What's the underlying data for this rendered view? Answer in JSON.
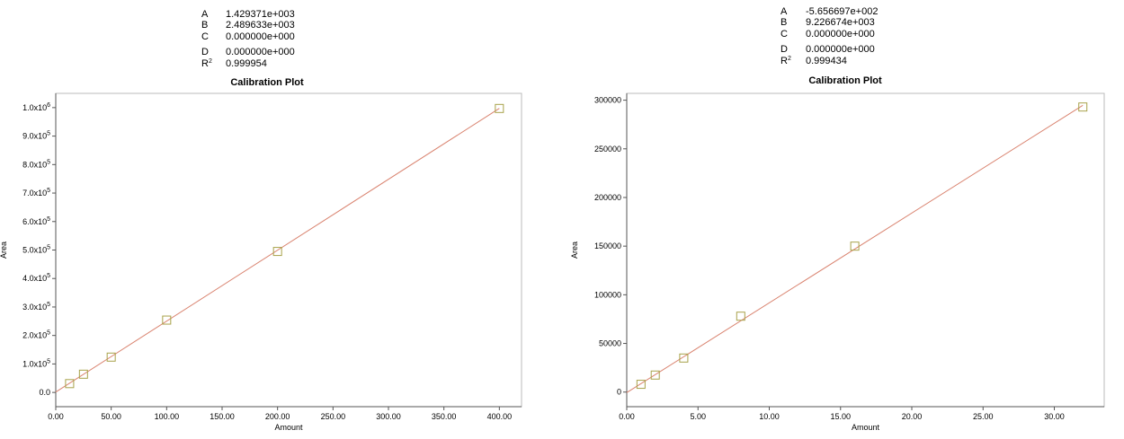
{
  "chart_data": [
    {
      "type": "scatter",
      "title": "Calibration Plot",
      "xlabel": "Amount",
      "ylabel": "Area",
      "coefficients": [
        {
          "name": "A",
          "value": "1.429371e+003"
        },
        {
          "name": "B",
          "value": "2.489633e+003"
        },
        {
          "name": "C",
          "value": "0.000000e+000"
        },
        {
          "name": "D",
          "value": "0.000000e+000"
        },
        {
          "name": "R",
          "sup": "2",
          "value": "0.999954"
        }
      ],
      "xlim": [
        0,
        420
      ],
      "ylim": [
        -50000,
        1050000
      ],
      "xticks": [
        {
          "value": 0,
          "label": "0.00"
        },
        {
          "value": 50,
          "label": "50.00"
        },
        {
          "value": 100,
          "label": "100.00"
        },
        {
          "value": 150,
          "label": "150.00"
        },
        {
          "value": 200,
          "label": "200.00"
        },
        {
          "value": 250,
          "label": "250.00"
        },
        {
          "value": 300,
          "label": "300.00"
        },
        {
          "value": 350,
          "label": "350.00"
        },
        {
          "value": 400,
          "label": "400.00"
        }
      ],
      "yticks": [
        {
          "value": 0,
          "label": "0.0"
        },
        {
          "value": 100000,
          "label": "1.0x10",
          "exp": "5"
        },
        {
          "value": 200000,
          "label": "2.0x10",
          "exp": "5"
        },
        {
          "value": 300000,
          "label": "3.0x10",
          "exp": "5"
        },
        {
          "value": 400000,
          "label": "4.0x10",
          "exp": "5"
        },
        {
          "value": 500000,
          "label": "5.0x10",
          "exp": "5"
        },
        {
          "value": 600000,
          "label": "6.0x10",
          "exp": "5"
        },
        {
          "value": 700000,
          "label": "7.0x10",
          "exp": "5"
        },
        {
          "value": 800000,
          "label": "8.0x10",
          "exp": "5"
        },
        {
          "value": 900000,
          "label": "9.0x10",
          "exp": "5"
        },
        {
          "value": 1000000,
          "label": "1.0x10",
          "exp": "6"
        }
      ],
      "points": [
        {
          "x": 12.5,
          "y": 31000
        },
        {
          "x": 25,
          "y": 64000
        },
        {
          "x": 50,
          "y": 124000
        },
        {
          "x": 100,
          "y": 254000
        },
        {
          "x": 200,
          "y": 495000
        },
        {
          "x": 400,
          "y": 997000
        }
      ],
      "fit": {
        "x0": 0,
        "x1": 400,
        "slope": 2489.633,
        "intercept": 1429.371
      },
      "colors": {
        "fit_line": "#d9826e",
        "marker": "#a8a24a",
        "axis": "#555555"
      }
    },
    {
      "type": "scatter",
      "title": "Calibration Plot",
      "xlabel": "Amount",
      "ylabel": "Area",
      "coefficients": [
        {
          "name": "A",
          "value": "-5.656697e+002"
        },
        {
          "name": "B",
          "value": "9.226674e+003"
        },
        {
          "name": "C",
          "value": "0.000000e+000"
        },
        {
          "name": "D",
          "value": "0.000000e+000"
        },
        {
          "name": "R",
          "sup": "2",
          "value": "0.999434"
        }
      ],
      "xlim": [
        0,
        33.5
      ],
      "ylim": [
        -15000,
        307000
      ],
      "xticks": [
        {
          "value": 0,
          "label": "0.00"
        },
        {
          "value": 5,
          "label": "5.00"
        },
        {
          "value": 10,
          "label": "10.00"
        },
        {
          "value": 15,
          "label": "15.00"
        },
        {
          "value": 20,
          "label": "20.00"
        },
        {
          "value": 25,
          "label": "25.00"
        },
        {
          "value": 30,
          "label": "30.00"
        }
      ],
      "yticks": [
        {
          "value": 0,
          "label": "0"
        },
        {
          "value": 50000,
          "label": "50000"
        },
        {
          "value": 100000,
          "label": "100000"
        },
        {
          "value": 150000,
          "label": "150000"
        },
        {
          "value": 200000,
          "label": "200000"
        },
        {
          "value": 250000,
          "label": "250000"
        },
        {
          "value": 300000,
          "label": "300000"
        }
      ],
      "points": [
        {
          "x": 1,
          "y": 8000
        },
        {
          "x": 2,
          "y": 17500
        },
        {
          "x": 4,
          "y": 35000
        },
        {
          "x": 8,
          "y": 78000
        },
        {
          "x": 16,
          "y": 150000
        },
        {
          "x": 32,
          "y": 293000
        }
      ],
      "fit": {
        "x0": 0,
        "x1": 32,
        "slope": 9226.674,
        "intercept": -565.6697
      },
      "colors": {
        "fit_line": "#d9826e",
        "marker": "#a8a24a",
        "axis": "#555555"
      }
    }
  ]
}
